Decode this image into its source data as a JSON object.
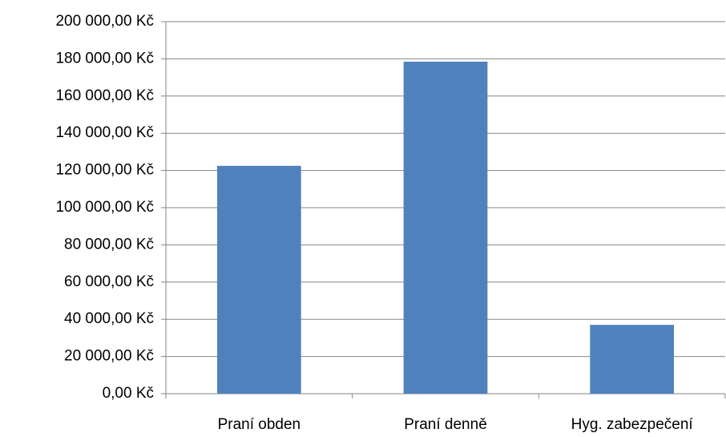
{
  "chart_data": {
    "type": "bar",
    "categories": [
      "Praní obden",
      "Praní denně",
      "Hyg. zabezpečení"
    ],
    "values": [
      122500,
      178500,
      37000
    ],
    "color": "#4f81bd",
    "ylim": [
      0,
      200000
    ],
    "yticks": [
      {
        "value": 0,
        "label": "0,00 Kč"
      },
      {
        "value": 20000,
        "label": "20 000,00 Kč"
      },
      {
        "value": 40000,
        "label": "40 000,00 Kč"
      },
      {
        "value": 60000,
        "label": "60 000,00 Kč"
      },
      {
        "value": 80000,
        "label": "80 000,00 Kč"
      },
      {
        "value": 100000,
        "label": "100 000,00 Kč"
      },
      {
        "value": 120000,
        "label": "120 000,00 Kč"
      },
      {
        "value": 140000,
        "label": "140 000,00 Kč"
      },
      {
        "value": 160000,
        "label": "160 000,00 Kč"
      },
      {
        "value": 180000,
        "label": "180 000,00 Kč"
      },
      {
        "value": 200000,
        "label": "200 000,00 Kč"
      }
    ],
    "grid": true
  }
}
